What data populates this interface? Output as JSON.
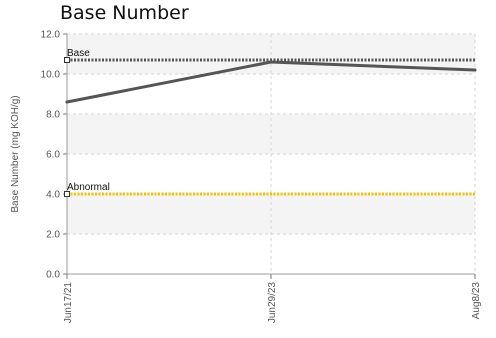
{
  "chart_data": {
    "type": "line",
    "title": "Base Number",
    "ylabel": "Base Number (mg KOH/g)",
    "xlabel": "",
    "ylim": [
      0,
      12
    ],
    "yticks": [
      "0.0",
      "2.0",
      "4.0",
      "6.0",
      "8.0",
      "10.0",
      "12.0"
    ],
    "categories": [
      "Jun17/21",
      "Jun29/23",
      "Aug8/23"
    ],
    "series": [
      {
        "values": [
          8.6,
          10.6,
          10.2
        ],
        "color": "#555555"
      }
    ],
    "reference_lines": [
      {
        "label": "Base",
        "value": 10.7,
        "color": "#555555"
      },
      {
        "label": "Abnormal",
        "value": 4.0,
        "color": "#f5c000"
      }
    ],
    "grid": true
  }
}
